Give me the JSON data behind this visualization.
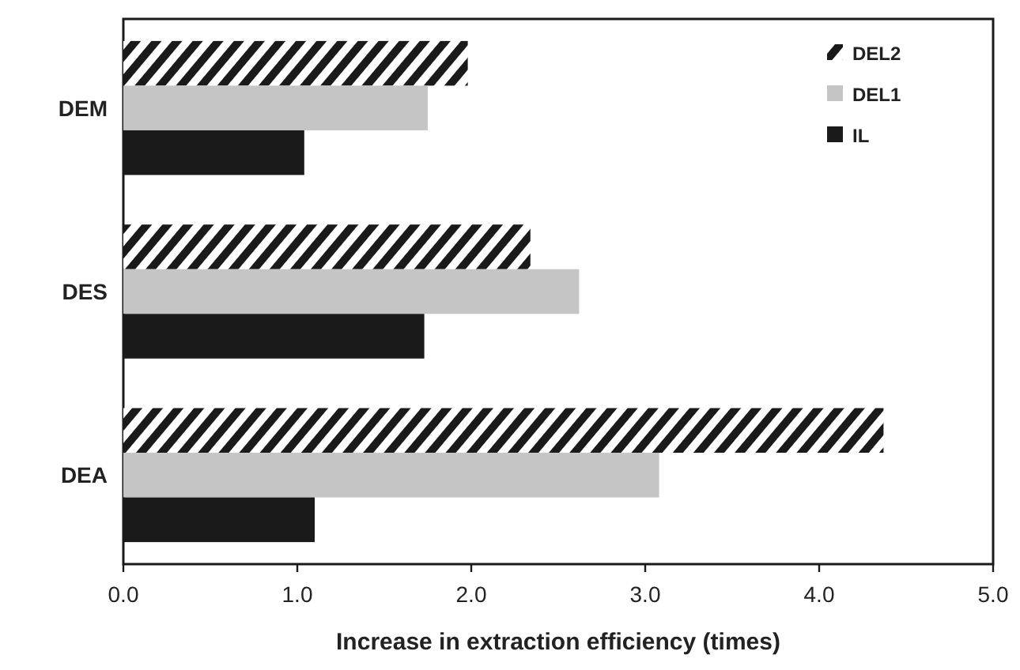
{
  "chart_data": {
    "type": "bar",
    "orientation": "horizontal",
    "xlabel": "Increase in extraction efficiency  (times)",
    "categories": [
      "DEM",
      "DES",
      "DEA"
    ],
    "series": [
      {
        "name": "DEL2",
        "color": "#1a1a1a",
        "values": [
          1.98,
          2.34,
          4.37
        ]
      },
      {
        "name": "DEL1",
        "color": "#c4c5c4",
        "values": [
          1.75,
          2.62,
          3.08
        ]
      },
      {
        "name": "IL",
        "color": "#1a1a1a",
        "values": [
          1.04,
          1.73,
          1.1
        ]
      }
    ],
    "xlim": [
      0,
      5
    ],
    "xticks": [
      {
        "value": 0,
        "label": "0.0"
      },
      {
        "value": 1,
        "label": "1.0"
      },
      {
        "value": 2,
        "label": "2.0"
      },
      {
        "value": 3,
        "label": "3.0"
      },
      {
        "value": 4,
        "label": "4.0"
      },
      {
        "value": 5,
        "label": "5.0"
      }
    ],
    "grid": false,
    "legend": "top right"
  }
}
